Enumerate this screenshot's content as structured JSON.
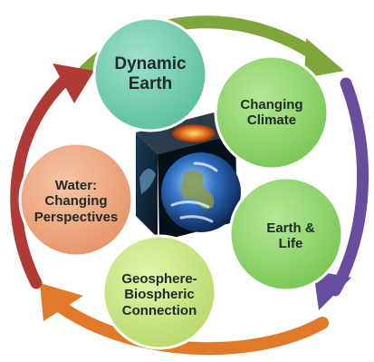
{
  "colors": {
    "arrow_green": "#7fa63a",
    "arrow_purple": "#6a4c9c",
    "arrow_orange": "#e07a2a",
    "arrow_red": "#b03a36",
    "circle_teal": "#6fc9b0",
    "circle_green": "#8fd36b",
    "circle_salmon": "#efab86",
    "circle_lime": "#c6e47e",
    "cube_dark": "#0b1a2a"
  },
  "nodes": {
    "dynamic_earth": {
      "line1": "Dynamic",
      "line2": "Earth",
      "line3": ""
    },
    "changing_climate": {
      "line1": "Changing",
      "line2": "Climate",
      "line3": ""
    },
    "earth_life": {
      "line1": "Earth &",
      "line2": "Life",
      "line3": ""
    },
    "geosphere": {
      "line1": "Geosphere-",
      "line2": "Biospheric",
      "line3": "Connection"
    },
    "water": {
      "line1": "Water:",
      "line2": "Changing",
      "line3": "Perspectives"
    }
  }
}
